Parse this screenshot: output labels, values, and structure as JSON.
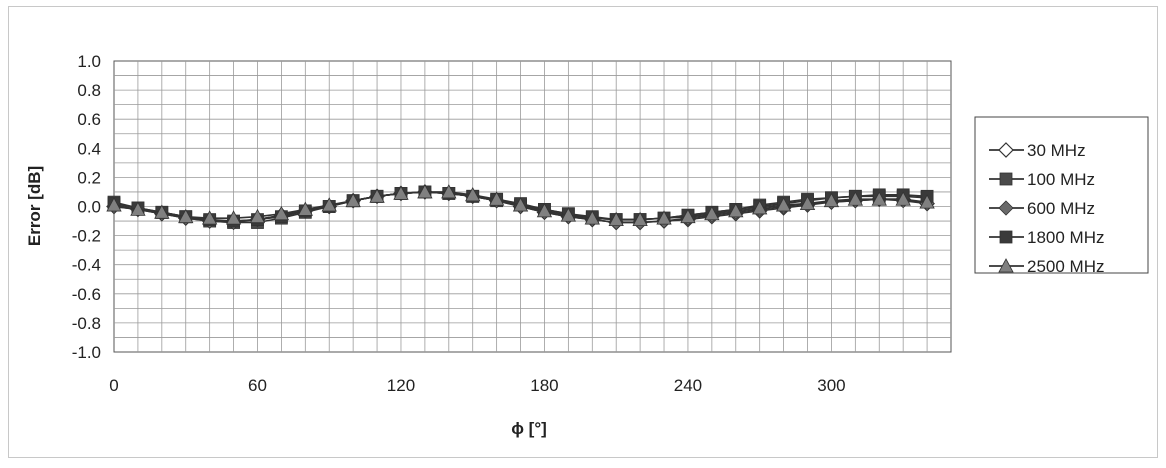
{
  "chart_data": {
    "type": "line",
    "title": "",
    "xlabel": "ϕ [°]",
    "ylabel": "Error [dB]",
    "xlim": [
      0,
      345
    ],
    "ylim": [
      -1.0,
      1.0
    ],
    "x_ticks": [
      "0",
      "60",
      "120",
      "180",
      "240",
      "300"
    ],
    "y_ticks": [
      "1.0",
      "0.8",
      "0.6",
      "0.4",
      "0.2",
      "0.0",
      "-0.2",
      "-0.4",
      "-0.6",
      "-0.8",
      "-1.0"
    ],
    "grid": true,
    "legend_position": "right",
    "x": [
      0,
      10,
      20,
      30,
      40,
      50,
      60,
      70,
      80,
      90,
      100,
      110,
      120,
      130,
      140,
      150,
      160,
      170,
      180,
      190,
      200,
      210,
      220,
      230,
      240,
      250,
      260,
      270,
      280,
      290,
      300,
      310,
      320,
      330,
      340
    ],
    "series": [
      {
        "name": "30 MHz",
        "marker": "diamond-open",
        "color": "#555555",
        "values": [
          0.0,
          -0.02,
          -0.05,
          -0.08,
          -0.1,
          -0.1,
          -0.09,
          -0.06,
          -0.03,
          0.0,
          0.04,
          0.07,
          0.09,
          0.1,
          0.09,
          0.07,
          0.04,
          0.0,
          -0.04,
          -0.07,
          -0.09,
          -0.11,
          -0.11,
          -0.1,
          -0.09,
          -0.07,
          -0.05,
          -0.03,
          -0.01,
          0.01,
          0.03,
          0.04,
          0.05,
          0.05,
          0.02
        ]
      },
      {
        "name": "100 MHz",
        "marker": "square",
        "color": "#4a4a4a",
        "values": [
          0.03,
          -0.01,
          -0.04,
          -0.07,
          -0.1,
          -0.11,
          -0.11,
          -0.08,
          -0.04,
          0.0,
          0.04,
          0.07,
          0.09,
          0.1,
          0.09,
          0.07,
          0.04,
          0.01,
          -0.02,
          -0.05,
          -0.08,
          -0.09,
          -0.09,
          -0.08,
          -0.06,
          -0.04,
          -0.02,
          0.01,
          0.03,
          0.05,
          0.06,
          0.07,
          0.07,
          0.07,
          0.06
        ]
      },
      {
        "name": "600 MHz",
        "marker": "diamond",
        "color": "#6a6a6a",
        "values": [
          0.0,
          -0.02,
          -0.05,
          -0.08,
          -0.1,
          -0.11,
          -0.09,
          -0.06,
          -0.03,
          0.0,
          0.04,
          0.07,
          0.09,
          0.1,
          0.09,
          0.07,
          0.04,
          0.0,
          -0.04,
          -0.07,
          -0.09,
          -0.11,
          -0.11,
          -0.1,
          -0.08,
          -0.06,
          -0.04,
          -0.02,
          0.0,
          0.02,
          0.03,
          0.04,
          0.05,
          0.04,
          0.02
        ]
      },
      {
        "name": "1800 MHz",
        "marker": "square",
        "color": "#3a3a3a",
        "values": [
          0.02,
          -0.01,
          -0.04,
          -0.07,
          -0.09,
          -0.1,
          -0.09,
          -0.07,
          -0.03,
          0.0,
          0.04,
          0.07,
          0.09,
          0.1,
          0.09,
          0.07,
          0.05,
          0.02,
          -0.02,
          -0.05,
          -0.07,
          -0.09,
          -0.09,
          -0.08,
          -0.06,
          -0.04,
          -0.02,
          0.0,
          0.02,
          0.04,
          0.06,
          0.07,
          0.08,
          0.08,
          0.07
        ]
      },
      {
        "name": "2500 MHz",
        "marker": "triangle",
        "color": "#808080",
        "values": [
          0.01,
          -0.02,
          -0.04,
          -0.07,
          -0.08,
          -0.08,
          -0.07,
          -0.05,
          -0.02,
          0.01,
          0.04,
          0.07,
          0.09,
          0.1,
          0.1,
          0.08,
          0.05,
          0.01,
          -0.03,
          -0.06,
          -0.08,
          -0.09,
          -0.09,
          -0.08,
          -0.07,
          -0.05,
          -0.03,
          -0.01,
          0.01,
          0.02,
          0.04,
          0.05,
          0.05,
          0.05,
          0.03
        ]
      }
    ]
  }
}
